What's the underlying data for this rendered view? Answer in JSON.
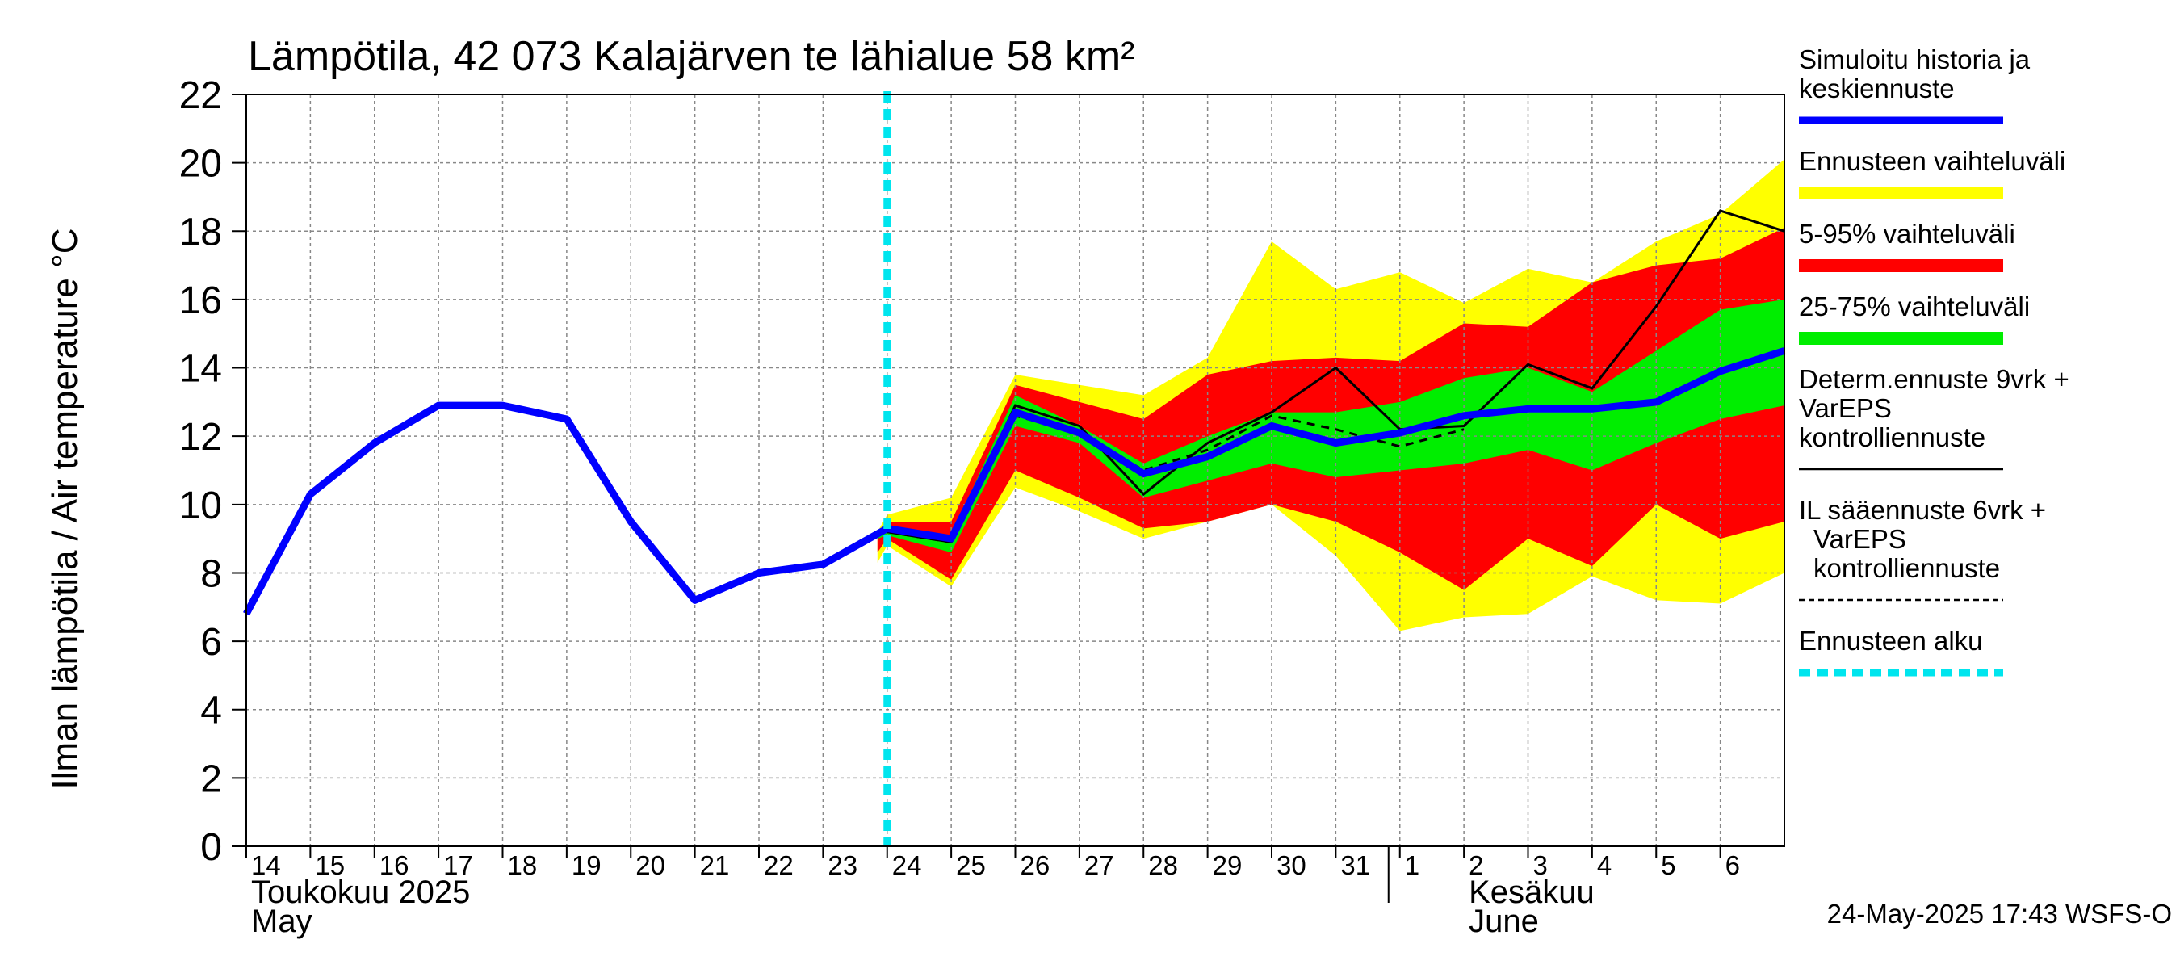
{
  "chart_data": {
    "type": "area",
    "title": "Lämpötila, 42 073 Kalajärven te lähialue 58 km²",
    "ylabel": "Ilman lämpötila / Air temperature    °C",
    "ylim": [
      0,
      22
    ],
    "yticks": [
      0,
      2,
      4,
      6,
      8,
      10,
      12,
      14,
      16,
      18,
      20,
      22
    ],
    "xlim": [
      0,
      24
    ],
    "x_tick_labels": [
      "14",
      "15",
      "16",
      "17",
      "18",
      "19",
      "20",
      "21",
      "22",
      "23",
      "24",
      "25",
      "26",
      "27",
      "28",
      "29",
      "30",
      "31",
      "1",
      "2",
      "3",
      "4",
      "5",
      "6"
    ],
    "month_labels": {
      "may_fi": "Toukokuu  2025",
      "may_en": "May",
      "june_fi": "Kesäkuu",
      "june_en": "June"
    },
    "timestamp": "24-May-2025 17:43 WSFS-O",
    "forecast_start_x": 10.0,
    "legend": [
      {
        "key": "sim",
        "label": "Simuloitu historia ja keskiennuste",
        "color": "#0000ff",
        "style": "thick"
      },
      {
        "key": "range",
        "label": "Ennusteen vaihteluväli",
        "color": "#ffff00",
        "style": "band"
      },
      {
        "key": "p5_95",
        "label": "5-95% vaihteluväli",
        "color": "#ff0000",
        "style": "band"
      },
      {
        "key": "p25_75",
        "label": "25-75% vaihteluväli",
        "color": "#00ee00",
        "style": "band"
      },
      {
        "key": "determ",
        "label": "Determ.ennuste 9vrk + VarEPS kontrolliennuste",
        "color": "#000000",
        "style": "solid"
      },
      {
        "key": "il",
        "label": "IL sääennuste 6vrk  + VarEPS kontrolliennuste",
        "color": "#000000",
        "style": "dashed"
      },
      {
        "key": "start",
        "label": "Ennusteen alku",
        "color": "#00e5ee",
        "style": "dotted"
      }
    ],
    "series": {
      "simulated": {
        "x": [
          0,
          1,
          2,
          3,
          4,
          5,
          6,
          7,
          8,
          9,
          10,
          11,
          12,
          13,
          14,
          15,
          16,
          17,
          18,
          19,
          20,
          21,
          22,
          23,
          24
        ],
        "y": [
          6.8,
          10.3,
          11.8,
          12.9,
          12.9,
          12.5,
          9.5,
          7.2,
          8.0,
          8.25,
          9.3,
          9.0,
          12.7,
          12.1,
          10.9,
          11.4,
          12.3,
          11.8,
          12.1,
          12.6,
          12.8,
          12.8,
          13.0,
          13.9,
          14.5
        ]
      },
      "range": {
        "x": [
          9.85,
          10,
          11,
          12,
          13,
          14,
          15,
          16,
          17,
          18,
          19,
          20,
          21,
          22,
          23,
          24
        ],
        "low": [
          8.3,
          8.8,
          7.6,
          10.5,
          9.8,
          9.0,
          9.5,
          10.0,
          8.5,
          6.3,
          6.7,
          6.8,
          7.9,
          7.2,
          7.1,
          8.0
        ],
        "high": [
          9.2,
          9.7,
          10.2,
          13.8,
          13.5,
          13.2,
          14.3,
          17.7,
          16.3,
          16.8,
          15.9,
          16.9,
          16.5,
          17.7,
          18.5,
          20.1
        ]
      },
      "p5_95": {
        "x": [
          9.85,
          10,
          11,
          12,
          13,
          14,
          15,
          16,
          17,
          18,
          19,
          20,
          21,
          22,
          23,
          24
        ],
        "low": [
          8.6,
          9.0,
          7.8,
          11.0,
          10.2,
          9.3,
          9.5,
          10.0,
          9.5,
          8.6,
          7.5,
          9.0,
          8.2,
          10.0,
          9.0,
          9.5
        ],
        "high": [
          9.0,
          9.5,
          9.5,
          13.5,
          13.0,
          12.5,
          13.8,
          14.2,
          14.3,
          14.2,
          15.3,
          15.2,
          16.5,
          17.0,
          17.2,
          18.1
        ]
      },
      "p25_75": {
        "x": [
          9.85,
          10,
          11,
          12,
          13,
          14,
          15,
          16,
          17,
          18,
          19,
          20,
          21,
          22,
          23,
          24
        ],
        "low": [
          9.0,
          9.1,
          8.6,
          12.3,
          11.8,
          10.2,
          10.7,
          11.2,
          10.8,
          11.0,
          11.2,
          11.6,
          11.0,
          11.8,
          12.5,
          12.9
        ],
        "high": [
          9.2,
          9.4,
          9.1,
          13.2,
          12.3,
          11.2,
          12.0,
          12.7,
          12.7,
          13.0,
          13.7,
          14.0,
          13.3,
          14.5,
          15.7,
          16.0
        ]
      },
      "determ": {
        "x": [
          10,
          11,
          12,
          13,
          14,
          15,
          16,
          17,
          18,
          19,
          20,
          21,
          22,
          23,
          24
        ],
        "y": [
          9.2,
          8.9,
          12.9,
          12.3,
          10.3,
          11.8,
          12.7,
          14.0,
          12.2,
          12.3,
          14.1,
          13.4,
          15.8,
          18.6,
          18.0
        ]
      },
      "il": {
        "x": [
          10,
          11,
          12,
          13,
          14,
          15,
          16,
          17,
          18,
          19
        ],
        "y": [
          9.2,
          8.9,
          12.6,
          12.1,
          11.0,
          11.6,
          12.6,
          12.2,
          11.7,
          12.2
        ]
      }
    }
  }
}
